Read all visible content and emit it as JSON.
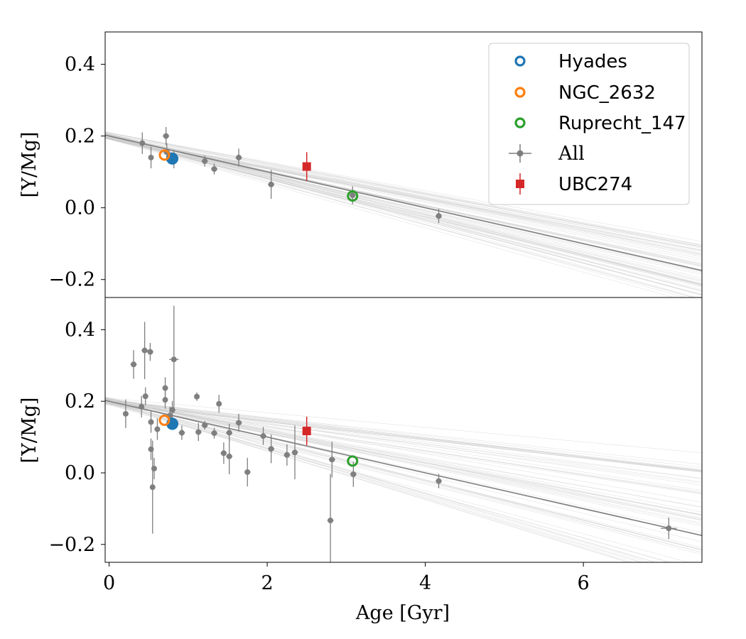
{
  "colors": {
    "all": "#7f7f7f",
    "hyades": "#1f77b4",
    "ngc2632": "#ff7f0e",
    "ruprecht147": "#2ca02c",
    "ubc274": "#d62728"
  },
  "legend": {
    "hyades": "Hyades",
    "ngc2632": "NGC_2632",
    "ruprecht147": "Ruprecht_147",
    "all": "All",
    "ubc274": "UBC274"
  },
  "chart_data": [
    {
      "type": "scatter",
      "panel": "top",
      "ylabel": "[Y/Mg]",
      "xlim": [
        -0.05,
        7.5
      ],
      "ylim": [
        -0.25,
        0.49
      ],
      "yticks": [
        -0.2,
        0.0,
        0.2,
        0.4
      ],
      "ytick_labels": [
        "−0.2",
        "0.0",
        "0.2",
        "0.4"
      ],
      "fit": {
        "intercept": 0.2,
        "slope": -0.05
      },
      "samples": {
        "count": 60,
        "slope_range": [
          -0.062,
          -0.04
        ],
        "intercept_range": [
          0.19,
          0.21
        ]
      },
      "series": [
        {
          "name": "All",
          "points": [
            [
              0.42,
              0.18,
              0.03,
              0.03
            ],
            [
              0.53,
              0.14,
              0.03,
              0.03
            ],
            [
              0.72,
              0.2,
              0.04,
              0.025
            ],
            [
              0.73,
              0.155,
              0.04,
              0.025
            ],
            [
              0.82,
              0.135,
              0.04,
              0.025
            ],
            [
              1.21,
              0.13,
              0.04,
              0.015
            ],
            [
              1.33,
              0.108,
              0.04,
              0.015
            ],
            [
              1.64,
              0.14,
              0.04,
              0.025
            ],
            [
              2.05,
              0.065,
              0.04,
              0.04
            ],
            [
              3.08,
              0.035,
              0.04,
              0.025
            ],
            [
              4.17,
              -0.023,
              0.04,
              0.02
            ]
          ]
        }
      ],
      "clusters": [
        {
          "name": "Hyades",
          "x": 0.8,
          "y": 0.137
        },
        {
          "name": "NGC_2632",
          "x": 0.7,
          "y": 0.147
        },
        {
          "name": "Ruprecht_147",
          "x": 3.08,
          "y": 0.033
        }
      ],
      "target": {
        "name": "UBC274",
        "x": 2.5,
        "y": 0.115,
        "yerr": 0.04
      },
      "legend_position": "top-right"
    },
    {
      "type": "scatter",
      "panel": "bottom",
      "xlabel": "Age [Gyr]",
      "ylabel": "[Y/Mg]",
      "xlim": [
        -0.05,
        7.5
      ],
      "ylim": [
        -0.25,
        0.49
      ],
      "xticks": [
        0,
        2,
        4,
        6
      ],
      "yticks": [
        -0.2,
        0.0,
        0.2,
        0.4
      ],
      "ytick_labels": [
        "−0.2",
        "0.0",
        "0.2",
        "0.4"
      ],
      "fit": {
        "intercept": 0.2,
        "slope": -0.05
      },
      "samples": {
        "count": 60,
        "slope_range": [
          -0.07,
          -0.02
        ],
        "intercept_range": [
          0.19,
          0.21
        ]
      },
      "series": [
        {
          "name": "All",
          "points": [
            [
              0.21,
              0.165,
              0.03,
              0.04
            ],
            [
              0.31,
              0.303,
              0.04,
              0.04
            ],
            [
              0.41,
              0.185,
              0.03,
              0.03
            ],
            [
              0.45,
              0.342,
              0.04,
              0.08
            ],
            [
              0.46,
              0.214,
              0.03,
              0.025
            ],
            [
              0.52,
              0.338,
              0.04,
              0.025
            ],
            [
              0.53,
              0.142,
              0.03,
              0.03
            ],
            [
              0.53,
              0.066,
              0.03,
              0.03
            ],
            [
              0.55,
              -0.04,
              0.03,
              0.13
            ],
            [
              0.57,
              0.012,
              0.03,
              0.03
            ],
            [
              0.61,
              0.122,
              0.03,
              0.03
            ],
            [
              0.71,
              0.237,
              0.03,
              0.03
            ],
            [
              0.71,
              0.204,
              0.03,
              0.025
            ],
            [
              0.77,
              0.16,
              0.03,
              0.025
            ],
            [
              0.8,
              0.176,
              0.04,
              0.025
            ],
            [
              0.82,
              0.317,
              0.06,
              0.15
            ],
            [
              0.92,
              0.112,
              0.04,
              0.02
            ],
            [
              1.11,
              0.213,
              0.03,
              0.012
            ],
            [
              1.13,
              0.114,
              0.04,
              0.025
            ],
            [
              1.21,
              0.133,
              0.04,
              0.012
            ],
            [
              1.33,
              0.111,
              0.04,
              0.015
            ],
            [
              1.39,
              0.193,
              0.03,
              0.025
            ],
            [
              1.45,
              0.055,
              0.04,
              0.03
            ],
            [
              1.52,
              0.112,
              0.04,
              0.025
            ],
            [
              1.52,
              0.046,
              0.04,
              0.05
            ],
            [
              1.64,
              0.14,
              0.04,
              0.025
            ],
            [
              1.75,
              0.002,
              0.04,
              0.04
            ],
            [
              1.95,
              0.103,
              0.04,
              0.025
            ],
            [
              2.05,
              0.067,
              0.04,
              0.04
            ],
            [
              2.25,
              0.05,
              0.04,
              0.03
            ],
            [
              2.35,
              0.057,
              0.04,
              0.075
            ],
            [
              2.8,
              -0.133,
              0.04,
              0.13
            ],
            [
              2.82,
              0.037,
              0.04,
              0.05
            ],
            [
              3.09,
              -0.004,
              0.04,
              0.035
            ],
            [
              4.17,
              -0.023,
              0.04,
              0.02
            ],
            [
              7.08,
              -0.155,
              0.1,
              0.03
            ]
          ]
        }
      ],
      "clusters": [
        {
          "name": "Hyades",
          "x": 0.8,
          "y": 0.137
        },
        {
          "name": "NGC_2632",
          "x": 0.7,
          "y": 0.147
        },
        {
          "name": "Ruprecht_147",
          "x": 3.08,
          "y": 0.033
        }
      ],
      "target": {
        "name": "UBC274",
        "x": 2.5,
        "y": 0.117,
        "yerr": 0.04
      }
    }
  ]
}
